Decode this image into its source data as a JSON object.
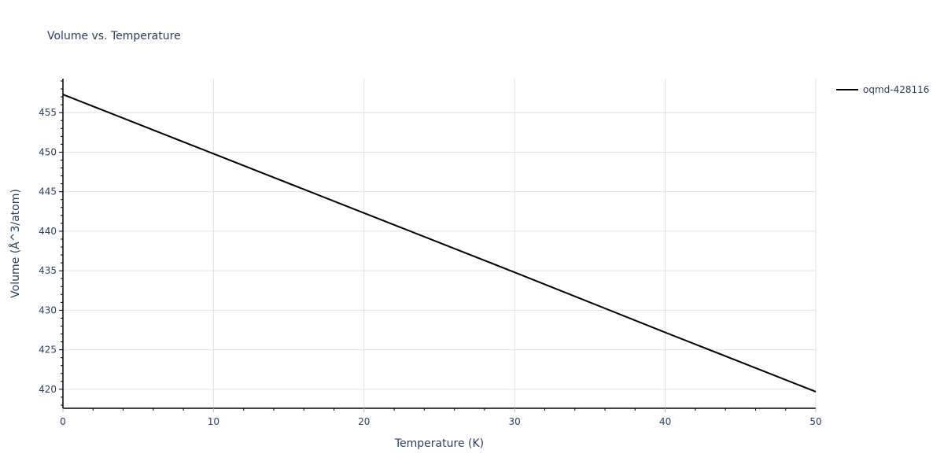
{
  "chart_data": {
    "type": "line",
    "title": "Volume vs. Temperature",
    "xlabel": "Temperature (K)",
    "ylabel": "Volume (Å^3/atom)",
    "xlim": [
      0,
      50
    ],
    "ylim": [
      417.6,
      459.3
    ],
    "x_ticks": [
      0,
      10,
      20,
      30,
      40,
      50
    ],
    "y_ticks": [
      420,
      425,
      430,
      435,
      440,
      445,
      450,
      455
    ],
    "grid": true,
    "legend_position": "top-right-outside",
    "series": [
      {
        "name": "oqmd-428116",
        "color": "#000000",
        "x": [
          0,
          10,
          20,
          30,
          40,
          50
        ],
        "y": [
          457.3,
          449.8,
          442.3,
          434.8,
          427.2,
          419.7
        ]
      }
    ]
  }
}
